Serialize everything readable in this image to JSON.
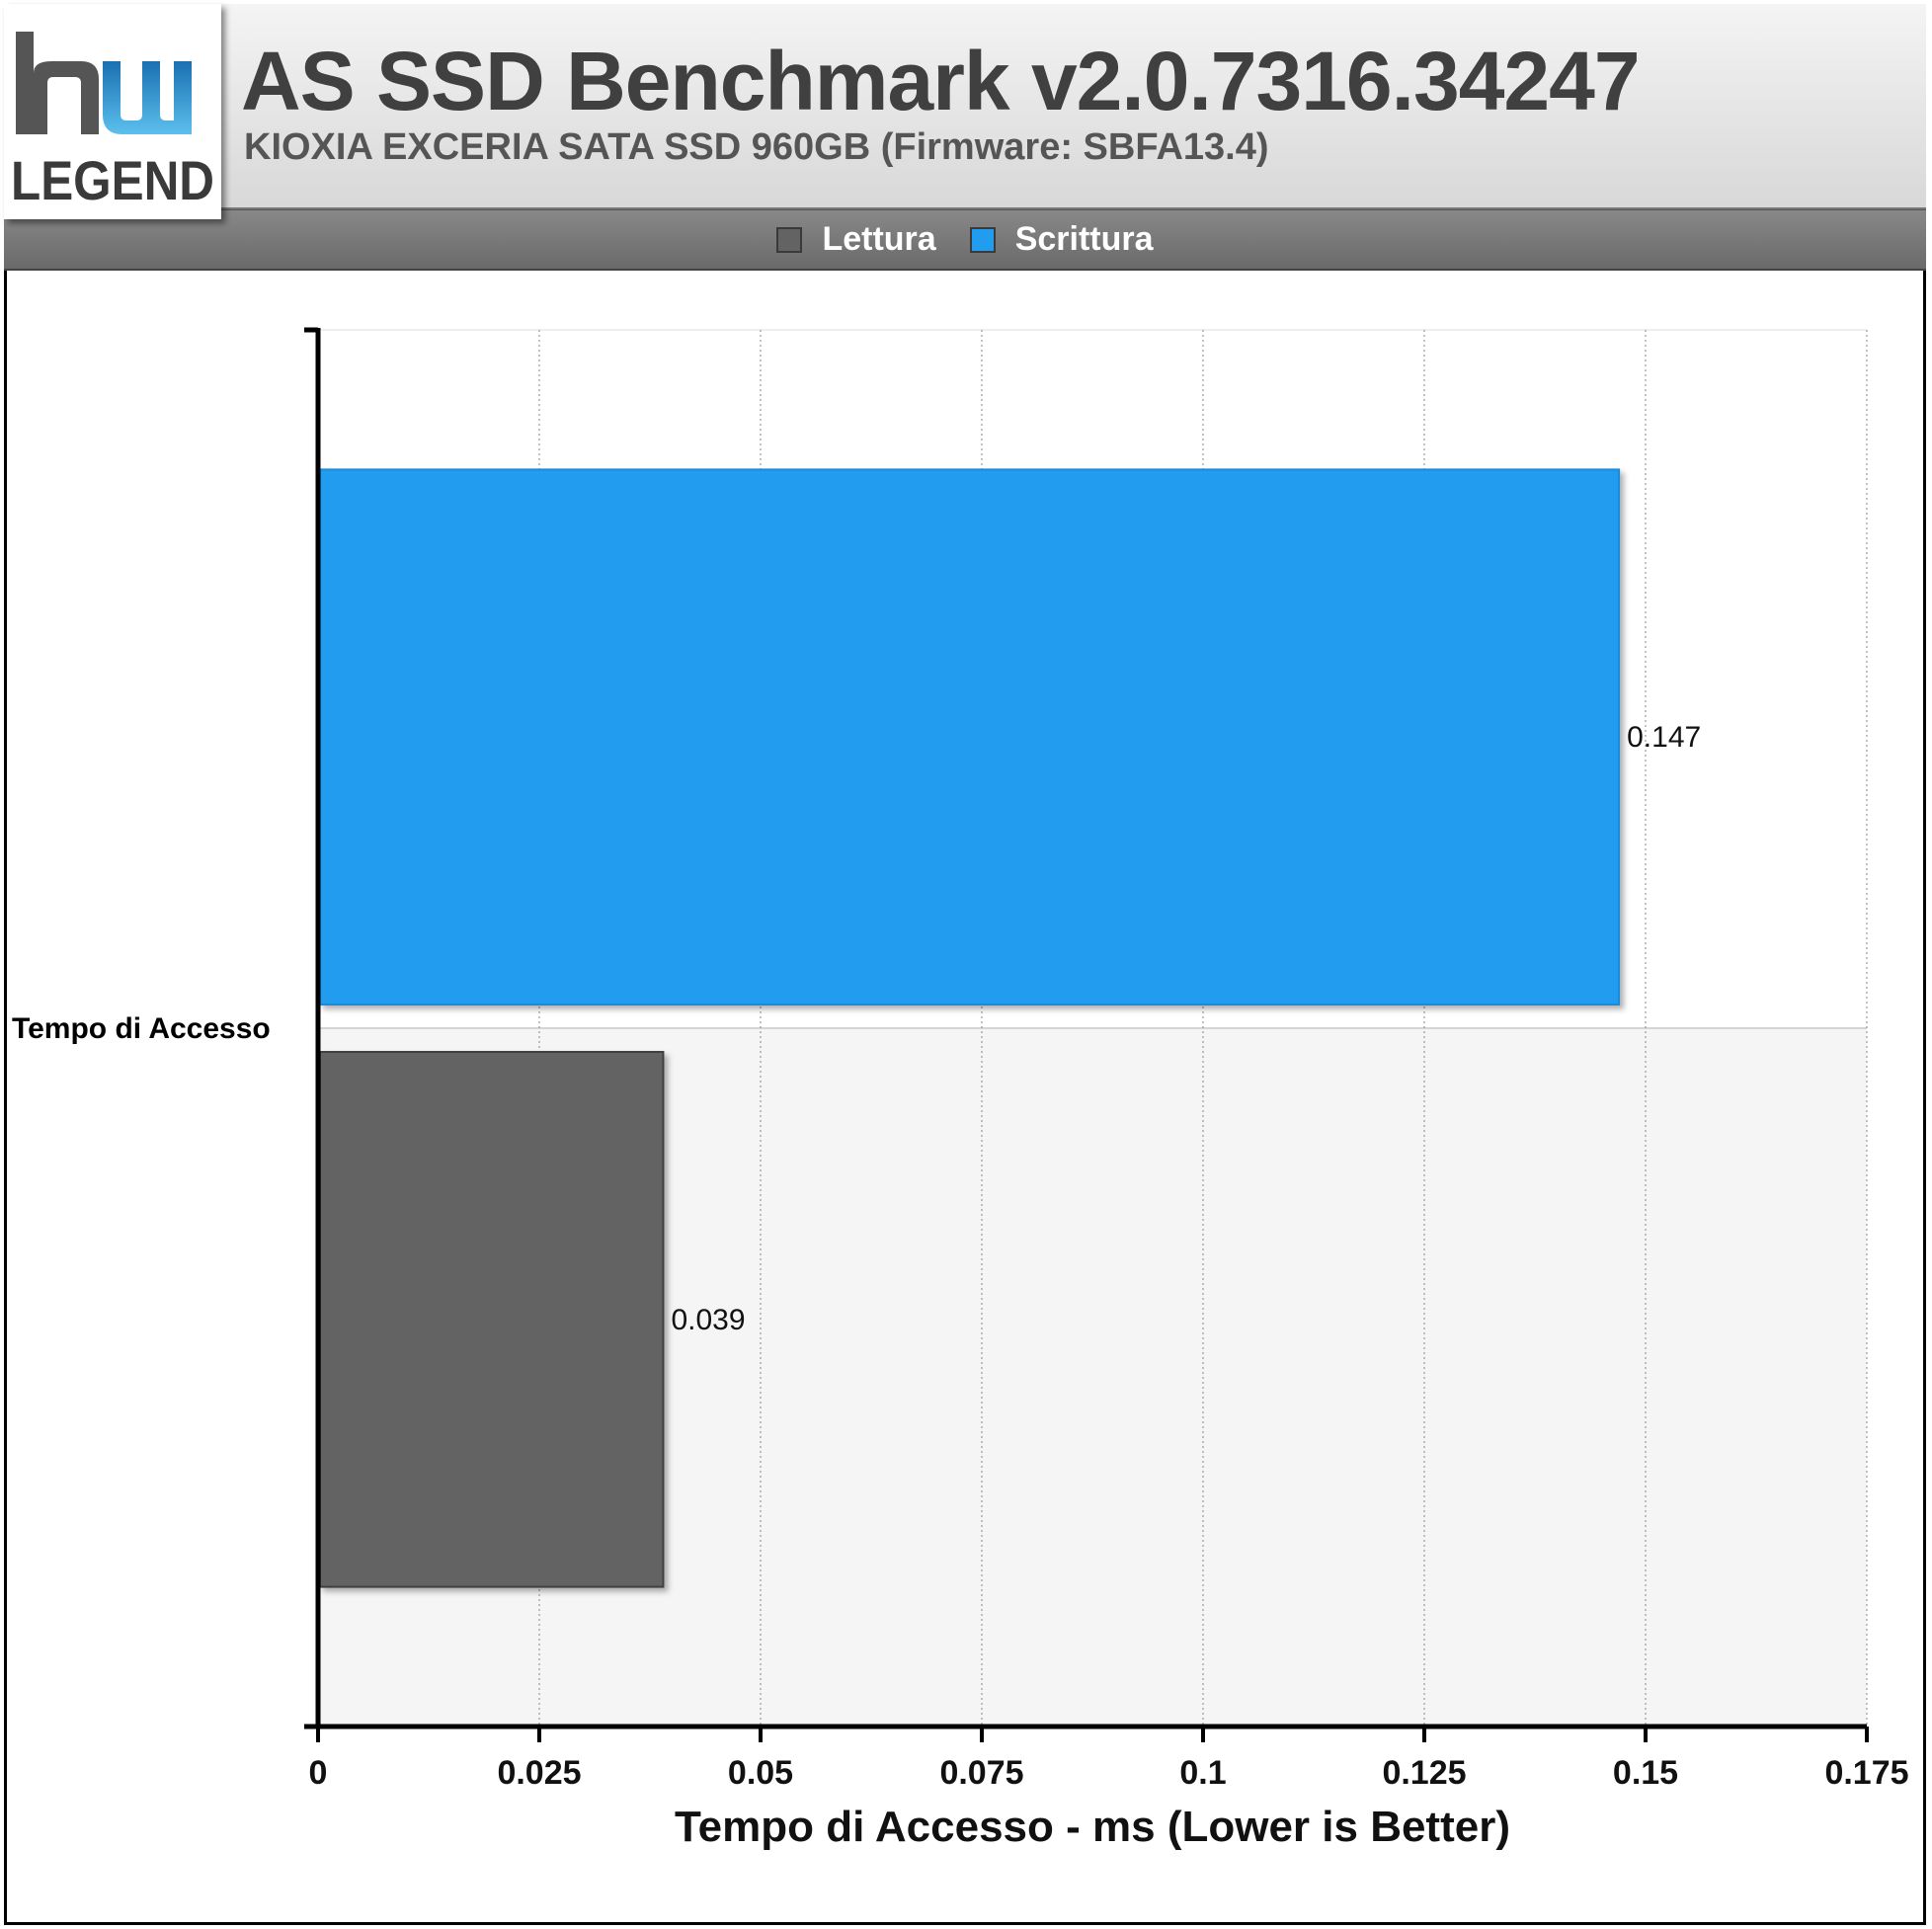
{
  "logo": {
    "text_top": "hw",
    "text_bottom": "LEGEND"
  },
  "header": {
    "title": "AS SSD Benchmark v2.0.7316.34247",
    "subtitle": "KIOXIA EXCERIA SATA SSD 960GB (Firmware: SBFA13.4)"
  },
  "legend": {
    "items": [
      {
        "label": "Lettura",
        "color": "#636363"
      },
      {
        "label": "Scrittura",
        "color": "#219cee"
      }
    ]
  },
  "chart_data": {
    "type": "bar",
    "orientation": "horizontal",
    "categories": [
      "Tempo di Accesso"
    ],
    "series": [
      {
        "name": "Lettura",
        "color": "#636363",
        "values": [
          0.039
        ],
        "labels": [
          "0.039"
        ]
      },
      {
        "name": "Scrittura",
        "color": "#219cee",
        "values": [
          0.147
        ],
        "labels": [
          "0.147"
        ]
      }
    ],
    "xlabel": "Tempo di Accesso - ms (Lower is Better)",
    "xlim": [
      0,
      0.175
    ],
    "xticks": [
      0,
      0.025,
      0.05,
      0.075,
      0.1,
      0.125,
      0.15,
      0.175
    ],
    "xtick_labels": [
      "0",
      "0.025",
      "0.05",
      "0.075",
      "0.1",
      "0.125",
      "0.15",
      "0.175"
    ],
    "grid": true,
    "legend_position": "top-center"
  }
}
